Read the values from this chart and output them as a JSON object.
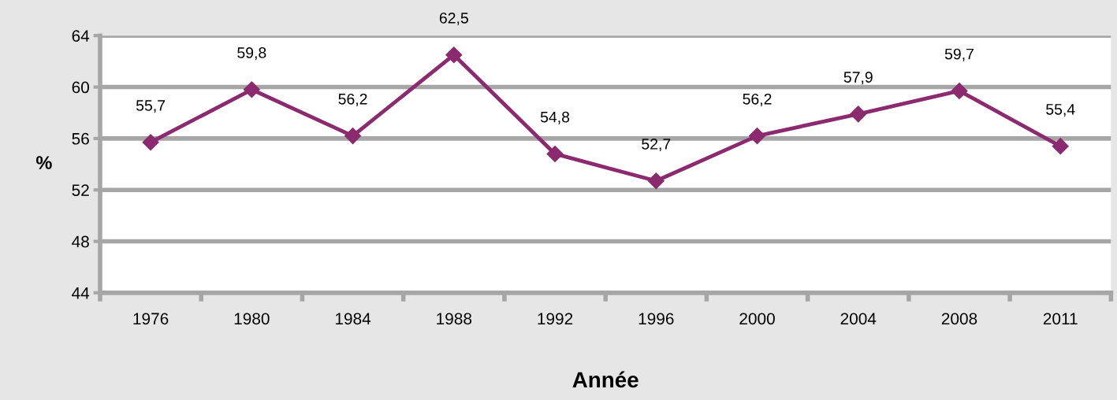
{
  "chart_data": {
    "type": "line",
    "xlabel": "Année",
    "ylabel": "%",
    "categories": [
      "1976",
      "1980",
      "1984",
      "1988",
      "1992",
      "1996",
      "2000",
      "2004",
      "2008",
      "2011"
    ],
    "series": [
      {
        "color": "#8b2a6e",
        "values": [
          55.7,
          59.8,
          56.2,
          62.5,
          54.8,
          52.7,
          56.2,
          57.9,
          59.7,
          55.4
        ],
        "value_labels": [
          "55,7",
          "59,8",
          "56,2",
          "62,5",
          "54,8",
          "52,7",
          "56,2",
          "57,9",
          "59,7",
          "55,4"
        ]
      }
    ],
    "ylim": [
      44,
      64
    ],
    "yticks": [
      44,
      48,
      52,
      56,
      60,
      64
    ],
    "grid": "y",
    "marker": "diamond",
    "line_style": "solid"
  }
}
